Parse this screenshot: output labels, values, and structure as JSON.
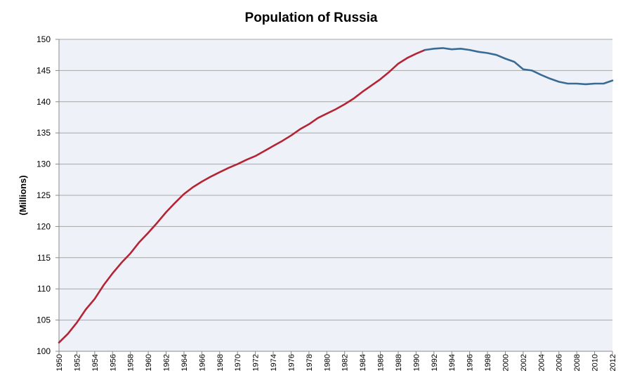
{
  "chart_data": {
    "type": "line",
    "title": "Population of Russia",
    "xlabel": "",
    "ylabel": "(Millions)",
    "xlim": [
      1950,
      2012
    ],
    "ylim": [
      100,
      150
    ],
    "yticks": [
      100,
      105,
      110,
      115,
      120,
      125,
      130,
      135,
      140,
      145,
      150
    ],
    "xticks": [
      1950,
      1952,
      1954,
      1956,
      1958,
      1960,
      1962,
      1964,
      1966,
      1968,
      1970,
      1972,
      1974,
      1976,
      1978,
      1980,
      1982,
      1984,
      1986,
      1988,
      1990,
      1992,
      1994,
      1996,
      1998,
      2000,
      2002,
      2004,
      2006,
      2008,
      2010,
      2012
    ],
    "grid": true,
    "legend": "none",
    "colors": {
      "plot_background": "#eef2f8",
      "gridline": "#a6a6a6",
      "series_1": "#b52434",
      "series_2": "#3a6b94"
    },
    "series": [
      {
        "color_key": "series_1",
        "x": [
          1950,
          1951,
          1952,
          1953,
          1954,
          1955,
          1956,
          1957,
          1958,
          1959,
          1960,
          1961,
          1962,
          1963,
          1964,
          1965,
          1966,
          1967,
          1968,
          1969,
          1970,
          1971,
          1972,
          1973,
          1974,
          1975,
          1976,
          1977,
          1978,
          1979,
          1980,
          1981,
          1982,
          1983,
          1984,
          1985,
          1986,
          1987,
          1988,
          1989,
          1990,
          1991
        ],
        "values": [
          101.4,
          102.8,
          104.6,
          106.7,
          108.4,
          110.6,
          112.5,
          114.2,
          115.7,
          117.5,
          119.0,
          120.6,
          122.3,
          123.8,
          125.2,
          126.3,
          127.2,
          128.0,
          128.7,
          129.4,
          130.0,
          130.7,
          131.3,
          132.1,
          132.9,
          133.7,
          134.6,
          135.6,
          136.4,
          137.4,
          138.1,
          138.8,
          139.6,
          140.5,
          141.6,
          142.6,
          143.6,
          144.8,
          146.1,
          147.0,
          147.7,
          148.3
        ]
      },
      {
        "color_key": "series_2",
        "x": [
          1991,
          1992,
          1993,
          1994,
          1995,
          1996,
          1997,
          1998,
          1999,
          2000,
          2001,
          2002,
          2003,
          2004,
          2005,
          2006,
          2007,
          2008,
          2009,
          2010,
          2011,
          2012
        ],
        "values": [
          148.3,
          148.5,
          148.6,
          148.4,
          148.5,
          148.3,
          148.0,
          147.8,
          147.5,
          146.9,
          146.4,
          145.2,
          145.0,
          144.3,
          143.7,
          143.2,
          142.9,
          142.9,
          142.8,
          142.9,
          142.9,
          143.4
        ]
      }
    ]
  }
}
